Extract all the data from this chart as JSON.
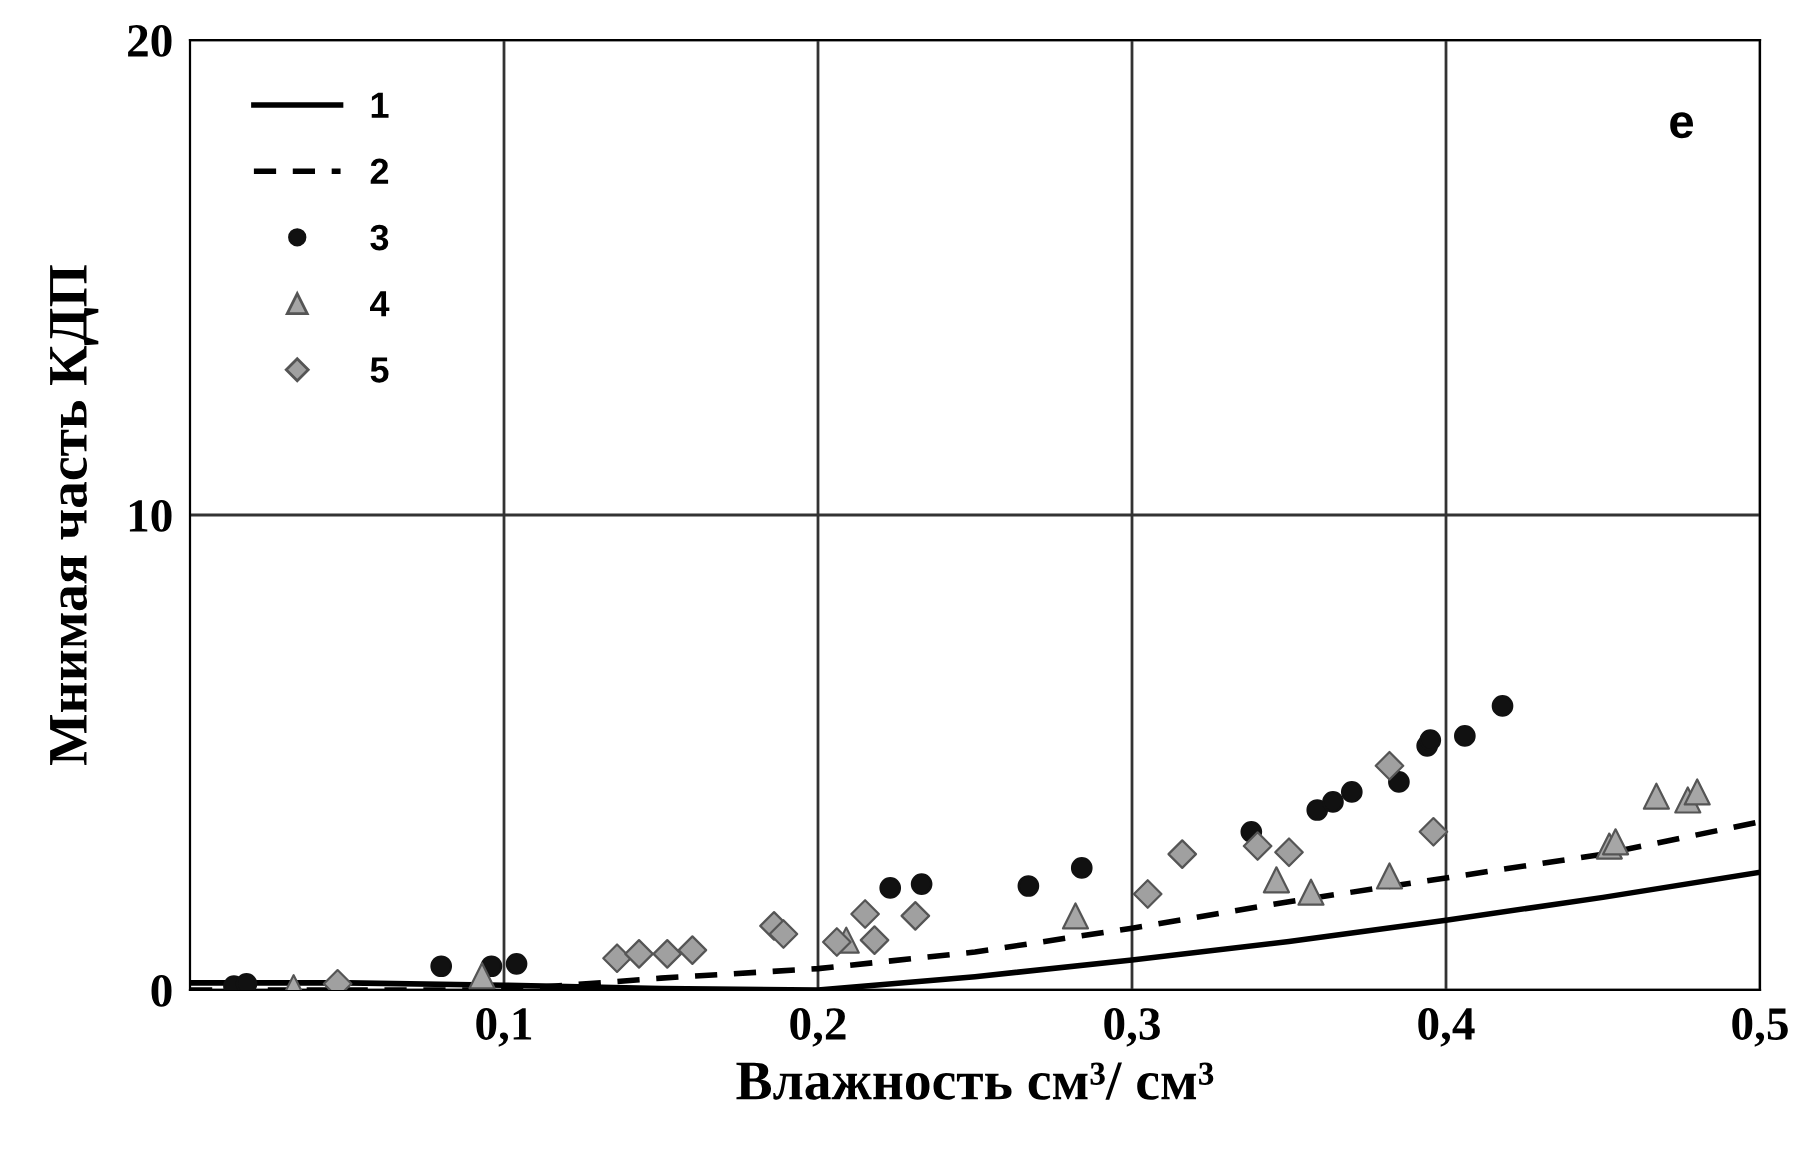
{
  "chart_data": {
    "type": "scatter",
    "xlabel": "Влажность см³/ см³",
    "ylabel": "Мнимая часть КДП",
    "annotations": [
      "е"
    ],
    "xlim": [
      0,
      0.5
    ],
    "ylim": [
      0,
      20
    ],
    "xticks": [
      {
        "value": 0.1,
        "label": "0,1"
      },
      {
        "value": 0.2,
        "label": "0,2"
      },
      {
        "value": 0.3,
        "label": "0,3"
      },
      {
        "value": 0.4,
        "label": "0,4"
      },
      {
        "value": 0.5,
        "label": "0,5"
      }
    ],
    "yticks": [
      0,
      10,
      20
    ],
    "grid": true,
    "legend": "top left",
    "series": [
      {
        "name": "1",
        "type": "line",
        "line_style": "solid",
        "color": "#000000",
        "x": [
          0,
          0.05,
          0.1,
          0.15,
          0.2,
          0.25,
          0.3,
          0.35,
          0.4,
          0.45,
          0.5
        ],
        "values": [
          0.15,
          0.15,
          0.1,
          0.03,
          0,
          0.28,
          0.63,
          1.02,
          1.47,
          1.95,
          2.48
        ]
      },
      {
        "name": "2",
        "type": "line",
        "line_style": "dashed",
        "color": "#000000",
        "x": [
          0,
          0.05,
          0.1,
          0.15,
          0.2,
          0.25,
          0.3,
          0.35,
          0.4,
          0.45,
          0.5
        ],
        "values": [
          0,
          0,
          0,
          0.25,
          0.45,
          0.8,
          1.3,
          1.86,
          2.36,
          2.86,
          3.54
        ]
      },
      {
        "name": "3",
        "marker": "circle",
        "color": "#111111",
        "x": [
          0.014,
          0.018,
          0.08,
          0.096,
          0.104,
          0.223,
          0.233,
          0.267,
          0.284,
          0.338,
          0.359,
          0.364,
          0.37,
          0.385,
          0.394,
          0.395,
          0.406,
          0.418
        ],
        "values": [
          0.08,
          0.13,
          0.5,
          0.5,
          0.55,
          2.15,
          2.23,
          2.19,
          2.57,
          3.33,
          3.79,
          3.96,
          4.17,
          4.38,
          5.14,
          5.26,
          5.35,
          5.98
        ]
      },
      {
        "name": "4",
        "marker": "triangle",
        "color": "#a6a6a6",
        "x": [
          0.033,
          0.093,
          0.209,
          0.282,
          0.346,
          0.357,
          0.382,
          0.452,
          0.454,
          0.467,
          0.477,
          0.48
        ],
        "values": [
          0.05,
          0.3,
          1.05,
          1.56,
          2.32,
          2.06,
          2.4,
          3.03,
          3.12,
          4.08,
          4.0,
          4.17
        ]
      },
      {
        "name": "5",
        "marker": "diamond",
        "color": "#a0a0a0",
        "x": [
          0.047,
          0.136,
          0.143,
          0.152,
          0.16,
          0.186,
          0.189,
          0.206,
          0.215,
          0.218,
          0.231,
          0.305,
          0.316,
          0.34,
          0.35,
          0.382,
          0.396
        ],
        "values": [
          0.13,
          0.67,
          0.76,
          0.76,
          0.84,
          1.35,
          1.18,
          1.01,
          1.6,
          1.05,
          1.56,
          2.02,
          2.86,
          3.03,
          2.9,
          4.72,
          3.33
        ]
      }
    ]
  }
}
